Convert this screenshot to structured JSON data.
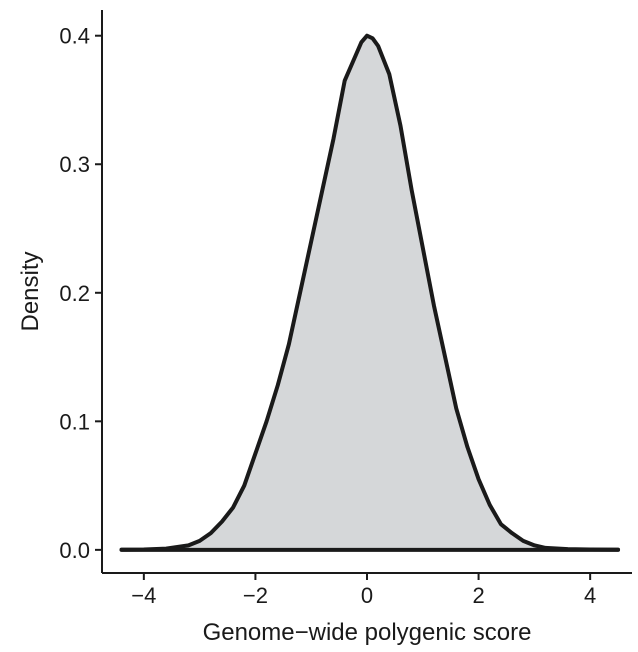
{
  "chart_data": {
    "type": "area",
    "xlabel": "Genome−wide polygenic score",
    "ylabel": "Density",
    "xlim": [
      -4.75,
      4.75
    ],
    "ylim": [
      -0.018,
      0.42
    ],
    "x_ticks": [
      -4,
      -2,
      0,
      2,
      4
    ],
    "x_tick_labels": [
      "−4",
      "−2",
      "0",
      "2",
      "4"
    ],
    "y_ticks": [
      0.0,
      0.1,
      0.2,
      0.3,
      0.4
    ],
    "y_tick_labels": [
      "0.0",
      "0.1",
      "0.2",
      "0.3",
      "0.4"
    ],
    "grid": false,
    "legend": "none",
    "fill_color": "#d5d7d9",
    "line_color": "#1a1a1a",
    "series": [
      {
        "x": [
          -4.4,
          -4.0,
          -3.6,
          -3.2,
          -3.0,
          -2.8,
          -2.6,
          -2.4,
          -2.2,
          -2.0,
          -1.8,
          -1.6,
          -1.4,
          -1.2,
          -1.0,
          -0.8,
          -0.6,
          -0.4,
          -0.2,
          -0.1,
          0.0,
          0.1,
          0.2,
          0.4,
          0.6,
          0.8,
          1.0,
          1.2,
          1.4,
          1.6,
          1.8,
          2.0,
          2.2,
          2.4,
          2.6,
          2.8,
          3.0,
          3.2,
          3.6,
          4.0,
          4.5
        ],
        "y": [
          0.0002,
          0.0003,
          0.001,
          0.0035,
          0.007,
          0.013,
          0.022,
          0.033,
          0.05,
          0.075,
          0.1,
          0.128,
          0.16,
          0.2,
          0.24,
          0.28,
          0.32,
          0.365,
          0.385,
          0.395,
          0.4,
          0.398,
          0.392,
          0.37,
          0.33,
          0.28,
          0.235,
          0.19,
          0.15,
          0.11,
          0.08,
          0.055,
          0.035,
          0.02,
          0.013,
          0.007,
          0.0035,
          0.0015,
          0.0006,
          0.0003,
          0.0002
        ]
      }
    ]
  }
}
